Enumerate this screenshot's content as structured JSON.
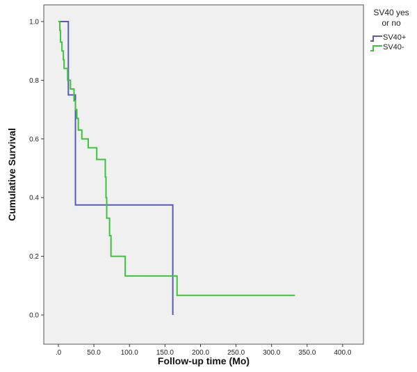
{
  "chart_data": {
    "type": "line",
    "xlabel": "Follow-up time (Mo)",
    "ylabel": "Cumulative Survival",
    "xlim": [
      0,
      400
    ],
    "ylim": [
      0,
      1
    ],
    "x_ticks": [
      ".0",
      "50.0",
      "100.0",
      "150.0",
      "200.0",
      "250.0",
      "300.0",
      "350.0",
      "400.0"
    ],
    "x_tick_values": [
      0,
      50,
      100,
      150,
      200,
      250,
      300,
      350,
      400
    ],
    "y_ticks": [
      "0.0",
      "0.2",
      "0.4",
      "0.6",
      "0.8",
      "1.0"
    ],
    "y_tick_values": [
      0,
      0.2,
      0.4,
      0.6,
      0.8,
      1.0
    ],
    "grid": false,
    "plot_background": "#f0f0f0",
    "legend": {
      "title": "SV40 yes",
      "title2": "or no",
      "position": "top-right"
    },
    "series": [
      {
        "name": "SV40+",
        "color": "#5a5ab4",
        "step": true,
        "points": [
          [
            0,
            1.0
          ],
          [
            14,
            1.0
          ],
          [
            14,
            0.75
          ],
          [
            24,
            0.75
          ],
          [
            24,
            0.375
          ],
          [
            161,
            0.375
          ],
          [
            161,
            0.0
          ]
        ]
      },
      {
        "name": "SV40-",
        "color": "#3cc43c",
        "step": true,
        "points": [
          [
            0,
            1.0
          ],
          [
            2,
            0.97
          ],
          [
            3,
            0.93
          ],
          [
            5,
            0.9
          ],
          [
            7,
            0.87
          ],
          [
            8,
            0.84
          ],
          [
            13,
            0.8
          ],
          [
            17,
            0.77
          ],
          [
            20,
            0.77
          ],
          [
            22,
            0.73
          ],
          [
            24,
            0.7
          ],
          [
            26,
            0.67
          ],
          [
            28,
            0.63
          ],
          [
            33,
            0.6
          ],
          [
            42,
            0.57
          ],
          [
            54,
            0.53
          ],
          [
            66,
            0.47
          ],
          [
            67,
            0.4
          ],
          [
            68,
            0.33
          ],
          [
            72,
            0.27
          ],
          [
            74,
            0.2
          ],
          [
            94,
            0.2
          ],
          [
            94,
            0.133
          ],
          [
            167,
            0.133
          ],
          [
            167,
            0.067
          ],
          [
            333,
            0.067
          ]
        ]
      }
    ]
  }
}
